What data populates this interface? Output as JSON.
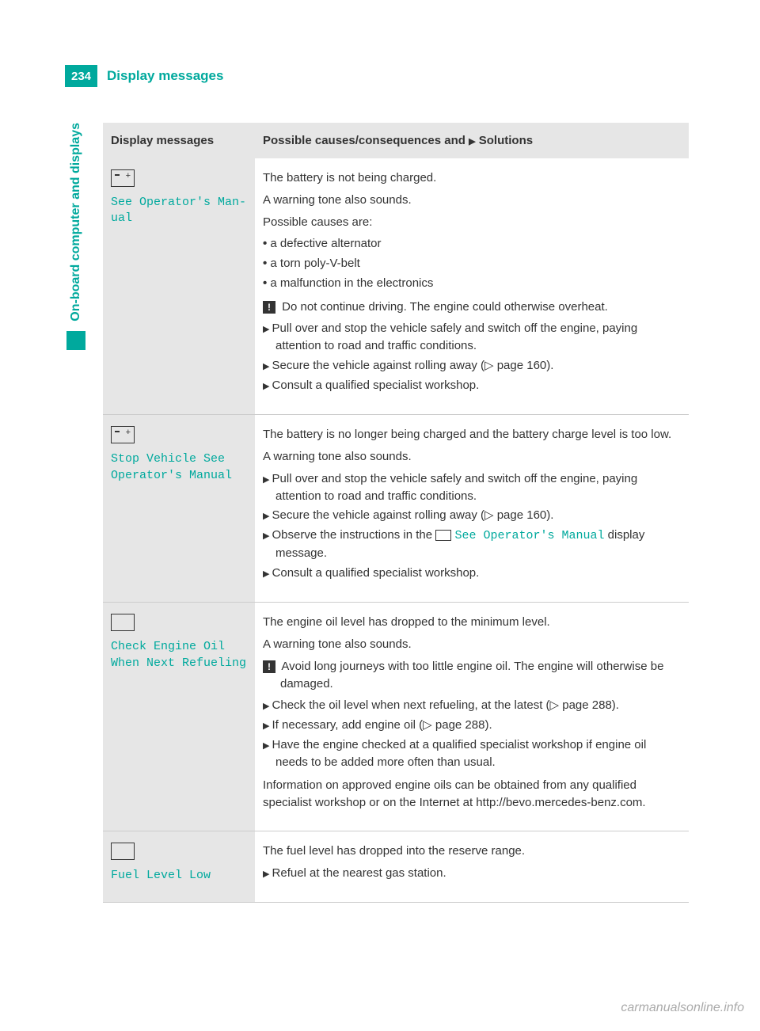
{
  "page_number": "234",
  "header_title": "Display messages",
  "side_tab": "On-board computer and displays",
  "accent_color": "#00a99d",
  "text_color": "#333333",
  "header_bg": "#e6e6e6",
  "table": {
    "head_left": "Display messages",
    "head_right_prefix": "Possible causes/consequences and ",
    "head_right_suffix": " Solutions",
    "arrow_glyph": "▶",
    "rows": [
      {
        "left_msg": "See Operator's Man-\nual",
        "intro": [
          "The battery is not being charged.",
          "A warning tone also sounds.",
          "Possible causes are:"
        ],
        "bullets": [
          "a defective alternator",
          "a torn poly-V-belt",
          "a malfunction in the electronics"
        ],
        "warning": "Do not continue driving. The engine could otherwise overheat.",
        "actions": [
          "Pull over and stop the vehicle safely and switch off the engine, paying attention to road and traffic conditions.",
          "Secure the vehicle against rolling away (▷ page 160).",
          "Consult a qualified specialist workshop."
        ]
      },
      {
        "left_msg": "Stop Vehicle See\nOperator's Manual",
        "intro": [
          "The battery is no longer being charged and the battery charge level is too low.",
          "A warning tone also sounds."
        ],
        "actions": [
          "Pull over and stop the vehicle safely and switch off the engine, paying attention to road and traffic conditions.",
          "Secure the vehicle against rolling away (▷ page 160).",
          {
            "pre": "Observe the instructions in the ",
            "inline_msg": "See Operator's Manual",
            "post": " display message."
          },
          "Consult a qualified specialist workshop."
        ]
      },
      {
        "left_msg": "Check Engine Oil\nWhen Next Refueling",
        "intro": [
          "The engine oil level has dropped to the minimum level.",
          "A warning tone also sounds."
        ],
        "warning": "Avoid long journeys with too little engine oil. The engine will otherwise be damaged.",
        "actions": [
          "Check the oil level when next refueling, at the latest (▷ page 288).",
          "If necessary, add engine oil (▷ page 288).",
          "Have the engine checked at a qualified specialist workshop if engine oil needs to be added more often than usual."
        ],
        "outro": [
          "Information on approved engine oils can be obtained from any qualified specialist workshop or on the Internet at http://bevo.mercedes-benz.com."
        ]
      },
      {
        "left_msg": "Fuel Level Low",
        "intro": [
          "The fuel level has dropped into the reserve range."
        ],
        "actions": [
          "Refuel at the nearest gas station."
        ]
      }
    ]
  },
  "watermark": "carmanualsonline.info"
}
